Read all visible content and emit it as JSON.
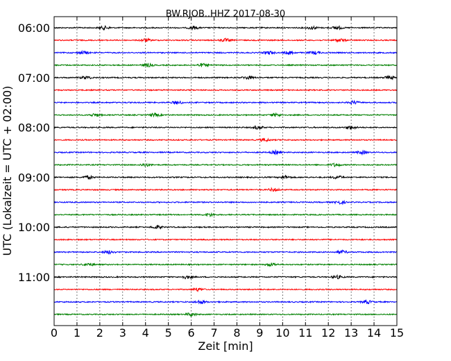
{
  "chart_data": {
    "type": "line",
    "title": "BW.RJOB..HHZ 2017-08-30",
    "xlabel": "Zeit  [min]",
    "ylabel": "UTC (Lokalzeit = UTC + 02:00)",
    "xlim": [
      0,
      15
    ],
    "x_ticks": [
      0,
      1,
      2,
      3,
      4,
      5,
      6,
      7,
      8,
      9,
      10,
      11,
      12,
      13,
      14,
      15
    ],
    "x_tick_labels": [
      "0",
      "1",
      "2",
      "3",
      "4",
      "5",
      "6",
      "7",
      "8",
      "9",
      "10",
      "11",
      "12",
      "13",
      "14",
      "15"
    ],
    "y_tick_labels": [
      "06:00",
      "07:00",
      "08:00",
      "09:00",
      "10:00",
      "11:00"
    ],
    "trace_interval_minutes": 15,
    "first_trace_time": "06:00",
    "vertical_grid": true,
    "grid_style": "dotted",
    "color_cycle": [
      "#000000",
      "#ff0000",
      "#0000ff",
      "#008000"
    ],
    "traces": [
      {
        "start": "06:00",
        "color": "#000000",
        "events_min": [
          2.2,
          6.1,
          11.3,
          12.4
        ]
      },
      {
        "start": "06:15",
        "color": "#ff0000",
        "events_min": [
          4.0,
          7.5,
          12.5
        ]
      },
      {
        "start": "06:30",
        "color": "#0000ff",
        "events_min": [
          1.3,
          9.4,
          10.3,
          11.4
        ]
      },
      {
        "start": "06:45",
        "color": "#008000",
        "events_min": [
          4.1,
          6.5
        ]
      },
      {
        "start": "07:00",
        "color": "#000000",
        "events_min": [
          1.4,
          8.5,
          14.7
        ]
      },
      {
        "start": "07:15",
        "color": "#ff0000",
        "events_min": []
      },
      {
        "start": "07:30",
        "color": "#0000ff",
        "events_min": [
          5.4,
          13.1
        ]
      },
      {
        "start": "07:45",
        "color": "#008000",
        "events_min": [
          1.8,
          4.4,
          9.7
        ]
      },
      {
        "start": "08:00",
        "color": "#000000",
        "events_min": [
          8.9,
          13.0
        ]
      },
      {
        "start": "08:15",
        "color": "#ff0000",
        "events_min": [
          9.2
        ]
      },
      {
        "start": "08:30",
        "color": "#0000ff",
        "events_min": [
          9.7,
          13.5
        ]
      },
      {
        "start": "08:45",
        "color": "#008000",
        "events_min": [
          4.0,
          12.3
        ]
      },
      {
        "start": "09:00",
        "color": "#000000",
        "events_min": [
          1.5,
          10.1,
          12.4
        ]
      },
      {
        "start": "09:15",
        "color": "#ff0000",
        "events_min": [
          9.6
        ]
      },
      {
        "start": "09:30",
        "color": "#0000ff",
        "events_min": [
          12.5
        ]
      },
      {
        "start": "09:45",
        "color": "#008000",
        "events_min": [
          6.8
        ]
      },
      {
        "start": "10:00",
        "color": "#000000",
        "events_min": [
          4.5
        ]
      },
      {
        "start": "10:15",
        "color": "#ff0000",
        "events_min": []
      },
      {
        "start": "10:30",
        "color": "#0000ff",
        "events_min": [
          2.4,
          12.6
        ]
      },
      {
        "start": "10:45",
        "color": "#008000",
        "events_min": [
          1.5,
          9.5
        ]
      },
      {
        "start": "11:00",
        "color": "#000000",
        "events_min": [
          5.8,
          12.4
        ]
      },
      {
        "start": "11:15",
        "color": "#ff0000",
        "events_min": [
          6.3
        ]
      },
      {
        "start": "11:30",
        "color": "#0000ff",
        "events_min": [
          6.4,
          13.7
        ]
      },
      {
        "start": "11:45",
        "color": "#008000",
        "events_min": [
          6.0
        ]
      }
    ]
  }
}
